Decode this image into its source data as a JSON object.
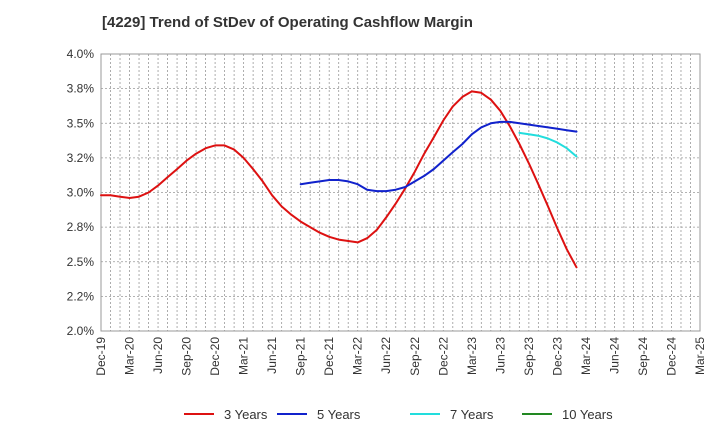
{
  "chart_data": {
    "type": "line",
    "title": "[4229]  Trend of StDev of Operating Cashflow Margin",
    "xlabel": "",
    "ylabel": "",
    "categories": [
      "Dec-19",
      "Mar-20",
      "Jun-20",
      "Sep-20",
      "Dec-20",
      "Mar-21",
      "Jun-21",
      "Sep-21",
      "Dec-21",
      "Mar-22",
      "Jun-22",
      "Sep-22",
      "Dec-22",
      "Mar-23",
      "Jun-23",
      "Sep-23",
      "Dec-23",
      "Mar-24",
      "Jun-24",
      "Sep-24",
      "Dec-24",
      "Mar-25"
    ],
    "ylim": [
      2.0,
      4.0
    ],
    "yticks": [
      2.0,
      2.25,
      2.5,
      2.75,
      3.0,
      3.25,
      3.5,
      3.75,
      4.0
    ],
    "ytick_labels": [
      "2.0%",
      "2.2%",
      "2.5%",
      "2.8%",
      "3.0%",
      "3.2%",
      "3.5%",
      "3.8%",
      "4.0%"
    ],
    "grid": true,
    "legend_position": "bottom",
    "series": [
      {
        "name": "3 Years",
        "color": "#dd1111",
        "points": [
          [
            0,
            2.98
          ],
          [
            0.33,
            2.98
          ],
          [
            0.67,
            2.97
          ],
          [
            1,
            2.96
          ],
          [
            1.33,
            2.97
          ],
          [
            1.67,
            3.0
          ],
          [
            2,
            3.05
          ],
          [
            2.33,
            3.11
          ],
          [
            2.67,
            3.17
          ],
          [
            3,
            3.23
          ],
          [
            3.33,
            3.28
          ],
          [
            3.67,
            3.32
          ],
          [
            4,
            3.34
          ],
          [
            4.33,
            3.34
          ],
          [
            4.67,
            3.31
          ],
          [
            5,
            3.25
          ],
          [
            5.33,
            3.17
          ],
          [
            5.67,
            3.08
          ],
          [
            6,
            2.98
          ],
          [
            6.33,
            2.9
          ],
          [
            6.67,
            2.84
          ],
          [
            7,
            2.79
          ],
          [
            7.33,
            2.75
          ],
          [
            7.67,
            2.71
          ],
          [
            8,
            2.68
          ],
          [
            8.33,
            2.66
          ],
          [
            8.67,
            2.65
          ],
          [
            9,
            2.64
          ],
          [
            9.33,
            2.67
          ],
          [
            9.67,
            2.73
          ],
          [
            10,
            2.82
          ],
          [
            10.33,
            2.92
          ],
          [
            10.67,
            3.03
          ],
          [
            11,
            3.15
          ],
          [
            11.33,
            3.28
          ],
          [
            11.67,
            3.4
          ],
          [
            12,
            3.52
          ],
          [
            12.33,
            3.62
          ],
          [
            12.67,
            3.69
          ],
          [
            13,
            3.73
          ],
          [
            13.33,
            3.72
          ],
          [
            13.67,
            3.67
          ],
          [
            14,
            3.59
          ],
          [
            14.33,
            3.48
          ],
          [
            14.67,
            3.35
          ],
          [
            15,
            3.21
          ],
          [
            15.33,
            3.06
          ],
          [
            15.67,
            2.9
          ],
          [
            16,
            2.74
          ],
          [
            16.33,
            2.59
          ],
          [
            16.67,
            2.46
          ]
        ]
      },
      {
        "name": "5 Years",
        "color": "#1122cc",
        "points": [
          [
            7,
            3.06
          ],
          [
            7.33,
            3.07
          ],
          [
            7.67,
            3.08
          ],
          [
            8,
            3.09
          ],
          [
            8.33,
            3.09
          ],
          [
            8.67,
            3.08
          ],
          [
            9,
            3.06
          ],
          [
            9.33,
            3.02
          ],
          [
            9.67,
            3.01
          ],
          [
            10,
            3.01
          ],
          [
            10.33,
            3.02
          ],
          [
            10.67,
            3.04
          ],
          [
            11,
            3.08
          ],
          [
            11.33,
            3.12
          ],
          [
            11.67,
            3.17
          ],
          [
            12,
            3.23
          ],
          [
            12.33,
            3.29
          ],
          [
            12.67,
            3.35
          ],
          [
            13,
            3.42
          ],
          [
            13.33,
            3.47
          ],
          [
            13.67,
            3.5
          ],
          [
            14,
            3.51
          ],
          [
            14.33,
            3.51
          ],
          [
            14.67,
            3.5
          ],
          [
            15,
            3.49
          ],
          [
            15.33,
            3.48
          ],
          [
            15.67,
            3.47
          ],
          [
            16,
            3.46
          ],
          [
            16.33,
            3.45
          ],
          [
            16.67,
            3.44
          ]
        ]
      },
      {
        "name": "7 Years",
        "color": "#22dddd",
        "points": [
          [
            14.67,
            3.43
          ],
          [
            15,
            3.42
          ],
          [
            15.33,
            3.41
          ],
          [
            15.67,
            3.39
          ],
          [
            16,
            3.36
          ],
          [
            16.33,
            3.32
          ],
          [
            16.67,
            3.26
          ]
        ]
      },
      {
        "name": "10 Years",
        "color": "#228822",
        "points": []
      }
    ]
  }
}
